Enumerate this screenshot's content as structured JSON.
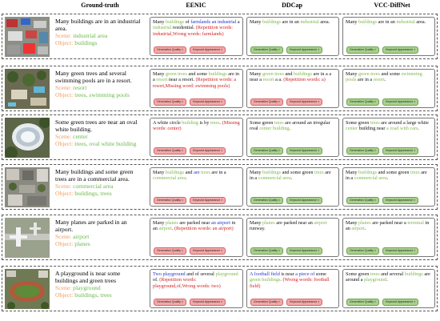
{
  "headers": [
    "Ground-truth",
    "EENIC",
    "DDCap",
    "VCC-DiffNet"
  ],
  "scene_label": "Scene:",
  "object_label": "Object:",
  "button_labels": {
    "quality": "Generation Quality ×",
    "appearance": "Keyword Appearance ×"
  },
  "rows": [
    {
      "image_icon": "industrial-area-thumbnail",
      "gt_sentence": "Many buildings are in an industrial area.",
      "scene": "industrial area",
      "object": "buildings",
      "eenic": [
        [
          "Many ",
          "k"
        ],
        [
          "buildings",
          "g"
        ],
        [
          " of ",
          "k"
        ],
        [
          "farmlands",
          "b"
        ],
        [
          " an industrial ",
          "b"
        ],
        [
          "a",
          "k"
        ],
        [
          " industrial",
          "g"
        ],
        [
          " residential. ",
          "k"
        ],
        [
          "(Repetition words: industrial,",
          "r"
        ],
        [
          "Wrong words: farmlands)",
          "r"
        ]
      ],
      "ddcap": [
        [
          "Many ",
          "k"
        ],
        [
          "buildings",
          "g"
        ],
        [
          " are in an ",
          "k"
        ],
        [
          "industrial",
          "g"
        ],
        [
          " area.",
          "k"
        ]
      ],
      "vcc": [
        [
          "Many ",
          "k"
        ],
        [
          "buildings",
          "g"
        ],
        [
          " are in an ",
          "k"
        ],
        [
          "industrial",
          "g"
        ],
        [
          " area.",
          "k"
        ]
      ],
      "eenic_btn": "red",
      "ddcap_btn": "green",
      "vcc_btn": "green"
    },
    {
      "image_icon": "resort-pool-thumbnail",
      "gt_sentence": "Many green trees and several swimming pools are in a resort.",
      "scene": "resort",
      "object": "trees, swimming pools",
      "eenic": [
        [
          "Many ",
          "k"
        ],
        [
          "green trees",
          "g"
        ],
        [
          " and some ",
          "k"
        ],
        [
          "buildings",
          "g"
        ],
        [
          " are in a ",
          "k"
        ],
        [
          "resort",
          "g"
        ],
        [
          " near a resort. ",
          "k"
        ],
        [
          "(Repetition words: a resort,",
          "r"
        ],
        [
          "Missing word: swimming pools)",
          "r"
        ]
      ],
      "ddcap": [
        [
          "Many ",
          "k"
        ],
        [
          "green trees",
          "g"
        ],
        [
          " and ",
          "k"
        ],
        [
          "buildings",
          "g"
        ],
        [
          " are in a a near a ",
          "k"
        ],
        [
          "resort",
          "g"
        ],
        [
          " a a. ",
          "k"
        ],
        [
          "(Repetition words: a)",
          "r"
        ]
      ],
      "vcc": [
        [
          "Many ",
          "k"
        ],
        [
          "green trees",
          "g"
        ],
        [
          " and some ",
          "k"
        ],
        [
          "swimming pools",
          "g"
        ],
        [
          " are in a ",
          "k"
        ],
        [
          "resort",
          "g"
        ],
        [
          ".",
          "k"
        ]
      ],
      "eenic_btn": "red",
      "ddcap_btn": "red",
      "vcc_btn": "green"
    },
    {
      "image_icon": "oval-building-thumbnail",
      "gt_sentence": "Some green trees are near an oval white building.",
      "scene": "center",
      "object": "trees, oval white building",
      "eenic": [
        [
          "A white circle ",
          "k"
        ],
        [
          "building",
          "g"
        ],
        [
          " is by ",
          "k"
        ],
        [
          "trees",
          "g"
        ],
        [
          ". ",
          "k"
        ],
        [
          "(Missing words: center)",
          "r"
        ]
      ],
      "ddcap": [
        [
          "Some green ",
          "k"
        ],
        [
          "trees",
          "g"
        ],
        [
          " are around an irregular oval ",
          "k"
        ],
        [
          "center",
          "g"
        ],
        [
          " ",
          "k"
        ],
        [
          "building",
          "g"
        ],
        [
          ".",
          "k"
        ]
      ],
      "vcc": [
        [
          "Some green ",
          "k"
        ],
        [
          "trees",
          "g"
        ],
        [
          " are around a large white ",
          "k"
        ],
        [
          "center",
          "g"
        ],
        [
          " building near ",
          "k"
        ],
        [
          "a road with cars",
          "g"
        ],
        [
          ".",
          "k"
        ]
      ],
      "eenic_btn": "red",
      "ddcap_btn": "green",
      "vcc_btn": "green"
    },
    {
      "image_icon": "commercial-area-thumbnail",
      "gt_sentence": "Many buildings and some green trees are in a commercial area.",
      "scene": "commercial area",
      "object": "buildings, trees",
      "eenic": [
        [
          "Many ",
          "k"
        ],
        [
          "buildings",
          "g"
        ],
        [
          " and ",
          "k"
        ],
        [
          "are",
          "b"
        ],
        [
          " ",
          "k"
        ],
        [
          "trees",
          "g"
        ],
        [
          " are in a ",
          "k"
        ],
        [
          "commercial area",
          "g"
        ],
        [
          ".",
          " k"
        ]
      ],
      "ddcap": [
        [
          "Many ",
          "k"
        ],
        [
          "buildings",
          "g"
        ],
        [
          " and some green ",
          "k"
        ],
        [
          "trees",
          "g"
        ],
        [
          " are in a ",
          "k"
        ],
        [
          "commercial area",
          "g"
        ],
        [
          ".",
          "k"
        ]
      ],
      "vcc": [
        [
          "Many ",
          "k"
        ],
        [
          "buildings",
          "g"
        ],
        [
          " and some green ",
          "k"
        ],
        [
          "trees",
          "g"
        ],
        [
          " are in a ",
          "k"
        ],
        [
          "commercial area",
          "g"
        ],
        [
          ".",
          "k"
        ]
      ],
      "eenic_btn": "red",
      "ddcap_btn": "green",
      "vcc_btn": "green"
    },
    {
      "image_icon": "airport-thumbnail",
      "gt_sentence": "Many planes are parked in an airport.",
      "scene": "airport",
      "object": "planes",
      "eenic": [
        [
          "Many ",
          "k"
        ],
        [
          "planes",
          "g"
        ],
        [
          " are parked near ",
          "k"
        ],
        [
          "an airport",
          "b"
        ],
        [
          " in an ",
          "k"
        ],
        [
          "airport",
          "g"
        ],
        [
          ". ",
          "k"
        ],
        [
          "(Repetition words: an airport)",
          "r"
        ]
      ],
      "ddcap": [
        [
          "Many ",
          "k"
        ],
        [
          "planes",
          "g"
        ],
        [
          " are parked near an ",
          "k"
        ],
        [
          "airport",
          "g"
        ],
        [
          " runway.",
          "k"
        ]
      ],
      "vcc": [
        [
          "Many ",
          "k"
        ],
        [
          "planes",
          "g"
        ],
        [
          " are parked near a ",
          "k"
        ],
        [
          "terminal",
          "g"
        ],
        [
          " in an ",
          "k"
        ],
        [
          "airport",
          "g"
        ],
        [
          ".",
          "k"
        ]
      ],
      "eenic_btn": "red",
      "ddcap_btn": "green",
      "vcc_btn": "green"
    },
    {
      "image_icon": "playground-thumbnail",
      "gt_sentence": "A playground is near some buildings and green trees",
      "scene": "playground",
      "object": "buildings, trees",
      "eenic": [
        [
          "Two playground",
          "b"
        ],
        [
          " and of several ",
          "k"
        ],
        [
          "playground",
          "g"
        ],
        [
          " of. ",
          "k"
        ],
        [
          "(Repetition words: playground,of,",
          "r"
        ],
        [
          "Wrong words: two)",
          "r"
        ]
      ],
      "ddcap": [
        [
          "A football field",
          "b"
        ],
        [
          " is near ",
          "k"
        ],
        [
          "a piece of",
          "b"
        ],
        [
          " some ",
          "k"
        ],
        [
          "green",
          "g"
        ],
        [
          " ",
          "k"
        ],
        [
          "buildings",
          "g"
        ],
        [
          ". ",
          "k"
        ],
        [
          "(Wrong words: football field)",
          "r"
        ]
      ],
      "vcc": [
        [
          "Some green ",
          "k"
        ],
        [
          "trees",
          "g"
        ],
        [
          " and several ",
          "k"
        ],
        [
          "buildings",
          "g"
        ],
        [
          " are around a ",
          "k"
        ],
        [
          "playground",
          "g"
        ],
        [
          ".",
          "k"
        ]
      ],
      "eenic_btn": "red",
      "ddcap_btn": "red",
      "vcc_btn": "green"
    }
  ]
}
